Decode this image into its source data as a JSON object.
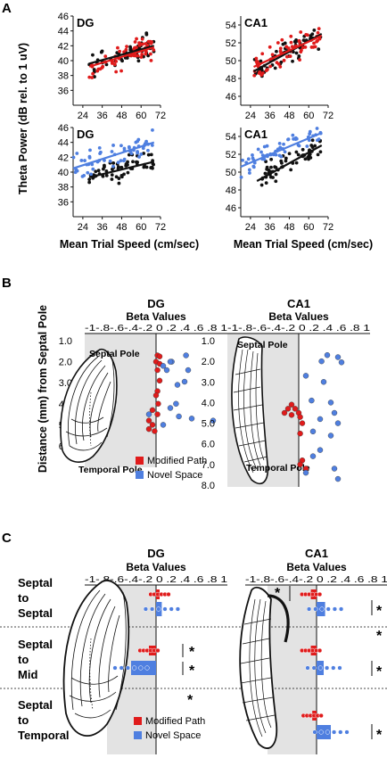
{
  "panel_letters": [
    "A",
    "B",
    "C"
  ],
  "panelA": {
    "ylabel": "Theta Power (dB rel. to 1 uV)",
    "xlabel": "Mean Trial Speed (cm/sec)",
    "subplots": [
      {
        "title": "DG",
        "yticks": [
          "46",
          "44",
          "42",
          "40",
          "38",
          "36"
        ],
        "xticks": [
          "24",
          "36",
          "48",
          "60",
          "72"
        ]
      },
      {
        "title": "CA1",
        "yticks": [
          "54",
          "52",
          "50",
          "48",
          "46"
        ],
        "xticks": [
          "24",
          "36",
          "48",
          "60",
          "72"
        ]
      },
      {
        "title": "DG",
        "yticks": [
          "46",
          "44",
          "42",
          "40",
          "38",
          "36"
        ],
        "xticks": [
          "24",
          "36",
          "48",
          "60",
          "72"
        ]
      },
      {
        "title": "CA1",
        "yticks": [
          "54",
          "52",
          "50",
          "48",
          "46"
        ],
        "xticks": [
          "24",
          "36",
          "48",
          "60",
          "72"
        ]
      }
    ]
  },
  "panelB": {
    "ylabel": "Distance (mm) from Septal Pole",
    "dg": {
      "title": "DG",
      "beta_label": "Beta Values",
      "xticks": "-1-.8-.6-.4-.2 0 .2 .4 .6 .8 1",
      "yticks": [
        "1.0",
        "2.0",
        "3.0",
        "4.0",
        "5.0",
        "6.0"
      ],
      "septal": "Septal Pole",
      "temporal": "Temporal Pole"
    },
    "ca1": {
      "title": "CA1",
      "beta_label": "Beta Values",
      "xticks": "-1-.8-.6-.4-.2 0 .2 .4 .6 .8 1",
      "yticks": [
        "1.0",
        "2.0",
        "3.0",
        "4.0",
        "5.0",
        "6.0",
        "7.0",
        "8.0"
      ],
      "septal": "Septal Pole",
      "temporal": "Temporal Pole"
    },
    "legend": [
      "Modified Path",
      "Novel Space"
    ]
  },
  "panelC": {
    "dg": {
      "title": "DG",
      "beta_label": "Beta Values",
      "xticks": "-1-.8-.6-.4-.2 0 .2 .4 .6 .8 1"
    },
    "ca1": {
      "title": "CA1",
      "beta_label": "Beta Values",
      "xticks": "-1-.8-.6-.4-.2 0 .2 .4 .6 .8 1"
    },
    "rows": [
      "Septal to Septal",
      "Septal to Mid",
      "Septal to Temporal"
    ],
    "star": "*",
    "legend": [
      "Modified Path",
      "Novel Space"
    ]
  },
  "colors": {
    "modified": "#e01b1b",
    "novel": "#4f7fe0",
    "shade": "#e3e3e3",
    "black": "#111111"
  },
  "chart_data": [
    {
      "type": "scatter",
      "panel": "A",
      "title": "DG",
      "xlabel": "Mean Trial Speed (cm/sec)",
      "ylabel": "Theta Power (dB rel. to 1 uV)",
      "xlim": [
        18,
        72
      ],
      "ylim": [
        34,
        46
      ],
      "fit_black": [
        [
          28,
          39.6
        ],
        [
          68,
          42.0
        ]
      ],
      "fit_red": [
        [
          28,
          39.2
        ],
        [
          68,
          41.8
        ]
      ]
    },
    {
      "type": "scatter",
      "panel": "A",
      "title": "CA1",
      "xlim": [
        18,
        72
      ],
      "ylim": [
        45,
        55
      ],
      "fit_black": [
        [
          26,
          48.8
        ],
        [
          68,
          53.0
        ]
      ],
      "fit_red": [
        [
          26,
          49.3
        ],
        [
          68,
          52.8
        ]
      ]
    },
    {
      "type": "scatter",
      "panel": "A",
      "title": "DG",
      "xlim": [
        18,
        72
      ],
      "ylim": [
        34,
        46
      ],
      "fit_blue": [
        [
          18,
          40.5
        ],
        [
          68,
          44.0
        ]
      ],
      "fit_black": [
        [
          28,
          39.3
        ],
        [
          68,
          41.4
        ]
      ]
    },
    {
      "type": "scatter",
      "panel": "A",
      "title": "CA1",
      "xlim": [
        18,
        72
      ],
      "ylim": [
        45,
        55
      ],
      "fit_blue": [
        [
          18,
          50.6
        ],
        [
          68,
          54.4
        ]
      ],
      "fit_black": [
        [
          28,
          49.0
        ],
        [
          68,
          53.0
        ]
      ]
    },
    {
      "type": "scatter",
      "panel": "B",
      "title": "DG",
      "xlabel": "Beta Values",
      "ylabel": "Distance (mm) from Septal Pole",
      "xlim": [
        -1,
        1
      ],
      "ylim": [
        6.0,
        1.0
      ],
      "series": [
        {
          "name": "Modified Path",
          "points": [
            [
              0.02,
              1.7
            ],
            [
              0.05,
              1.75
            ],
            [
              0.0,
              2.0
            ],
            [
              0.05,
              2.1
            ],
            [
              0.02,
              2.4
            ],
            [
              0.05,
              2.9
            ],
            [
              0.02,
              3.4
            ],
            [
              0.0,
              3.6
            ],
            [
              0.03,
              4.0
            ],
            [
              -0.05,
              4.3
            ],
            [
              0.02,
              4.5
            ],
            [
              -0.1,
              4.8
            ],
            [
              -0.05,
              5.0
            ],
            [
              -0.02,
              5.3
            ],
            [
              -0.1,
              5.2
            ]
          ]
        },
        {
          "name": "Novel Space",
          "points": [
            [
              0.22,
              2.0
            ],
            [
              0.1,
              2.2
            ],
            [
              0.15,
              2.4
            ],
            [
              0.2,
              2.0
            ],
            [
              0.3,
              3.1
            ],
            [
              0.28,
              4.0
            ],
            [
              0.42,
              1.7
            ],
            [
              0.45,
              2.4
            ],
            [
              0.4,
              2.95
            ],
            [
              0.5,
              4.7
            ],
            [
              0.32,
              4.6
            ],
            [
              0.8,
              4.8
            ],
            [
              0.1,
              5.0
            ],
            [
              0.2,
              4.2
            ],
            [
              -0.1,
              4.5
            ]
          ]
        }
      ]
    },
    {
      "type": "scatter",
      "panel": "B",
      "title": "CA1",
      "xlim": [
        -1,
        1
      ],
      "ylim": [
        8.0,
        1.0
      ],
      "series": [
        {
          "name": "Modified Path",
          "points": [
            [
              -0.15,
              4.3
            ],
            [
              -0.2,
              4.5
            ],
            [
              -0.1,
              4.6
            ],
            [
              -0.05,
              4.3
            ],
            [
              0.0,
              4.5
            ],
            [
              0.02,
              4.7
            ],
            [
              0.05,
              5.0
            ],
            [
              0.02,
              5.5
            ],
            [
              0.05,
              6.8
            ],
            [
              0.02,
              7.0
            ],
            [
              0.1,
              7.2
            ],
            [
              -0.1,
              4.1
            ]
          ]
        },
        {
          "name": "Novel Space",
          "points": [
            [
              0.4,
              1.7
            ],
            [
              0.55,
              1.8
            ],
            [
              0.32,
              2.0
            ],
            [
              0.6,
              2.05
            ],
            [
              0.1,
              2.7
            ],
            [
              0.35,
              3.0
            ],
            [
              0.18,
              3.9
            ],
            [
              0.45,
              4.0
            ],
            [
              0.5,
              4.5
            ],
            [
              0.3,
              4.8
            ],
            [
              0.55,
              5.0
            ],
            [
              0.2,
              5.4
            ],
            [
              0.45,
              5.6
            ],
            [
              0.3,
              6.3
            ],
            [
              0.2,
              6.6
            ],
            [
              0.5,
              7.2
            ],
            [
              0.55,
              7.7
            ],
            [
              0.1,
              7.4
            ]
          ]
        }
      ]
    },
    {
      "type": "bar",
      "panel": "C",
      "title": "DG",
      "xlabel": "Beta Values",
      "xlim": [
        -1,
        1
      ],
      "categories": [
        "Septal to Septal",
        "Septal to Mid",
        "Septal to Temporal"
      ],
      "series": [
        {
          "name": "Modified Path",
          "values": [
            0.05,
            -0.1,
            null
          ]
        },
        {
          "name": "Novel Space",
          "values": [
            0.08,
            -0.35,
            null
          ]
        }
      ]
    },
    {
      "type": "bar",
      "panel": "C",
      "title": "CA1",
      "xlabel": "Beta Values",
      "xlim": [
        -1,
        1
      ],
      "categories": [
        "Septal to Septal",
        "Septal to Mid",
        "Septal to Temporal"
      ],
      "series": [
        {
          "name": "Modified Path",
          "values": [
            -0.08,
            -0.08,
            -0.06
          ]
        },
        {
          "name": "Novel Space",
          "values": [
            0.12,
            0.1,
            0.2
          ]
        }
      ]
    }
  ]
}
